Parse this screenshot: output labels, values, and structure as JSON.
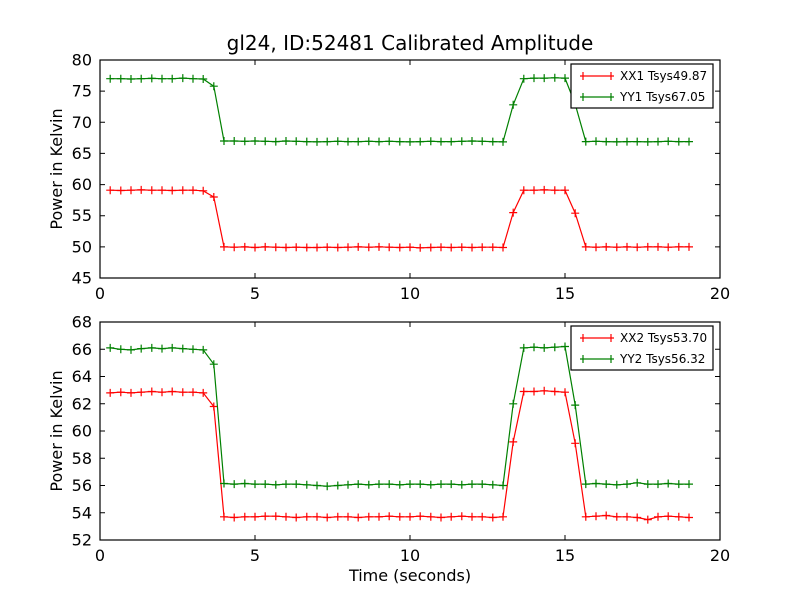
{
  "figure": {
    "title": "gl24, ID:52481 Calibrated Amplitude",
    "background_color": "#ffffff",
    "axes_color": "#000000",
    "series_colors": {
      "xx": "#ff0000",
      "yy": "#008000"
    }
  },
  "chart_data": [
    {
      "name": "subplot-1",
      "type": "line",
      "title": "",
      "xlabel": "",
      "ylabel": "Power in Kelvin",
      "xlim": [
        0,
        20
      ],
      "ylim": [
        45,
        80
      ],
      "xticks": [
        0,
        5,
        10,
        15,
        20
      ],
      "yticks": [
        45,
        50,
        55,
        60,
        65,
        70,
        75,
        80
      ],
      "grid": false,
      "legend_position": "upper right",
      "marker": "plus",
      "x": [
        0.33,
        0.67,
        1,
        1.33,
        1.67,
        2,
        2.33,
        2.67,
        3,
        3.33,
        3.67,
        4,
        4.33,
        4.67,
        5,
        5.33,
        5.67,
        6,
        6.33,
        6.67,
        7,
        7.33,
        7.67,
        8,
        8.33,
        8.67,
        9,
        9.33,
        9.67,
        10,
        10.33,
        10.67,
        11,
        11.33,
        11.67,
        12,
        12.33,
        12.67,
        13,
        13.33,
        13.67,
        14,
        14.33,
        14.67,
        15,
        15.33,
        15.67,
        16,
        16.33,
        16.67,
        17,
        17.33,
        17.67,
        18,
        18.33,
        18.67,
        19
      ],
      "series": [
        {
          "name": "XX1",
          "label": "XX1 Tsys49.87",
          "color": "#ff0000",
          "y": [
            59.1,
            59.05,
            59.1,
            59.15,
            59.1,
            59.1,
            59.05,
            59.1,
            59.1,
            59.0,
            58.0,
            50.0,
            49.95,
            50.0,
            49.9,
            50.0,
            49.95,
            49.9,
            49.95,
            49.9,
            49.9,
            49.95,
            49.9,
            49.95,
            50.0,
            49.95,
            50.0,
            49.95,
            49.9,
            49.95,
            49.85,
            49.9,
            49.95,
            49.9,
            49.95,
            49.9,
            49.95,
            49.95,
            49.9,
            55.5,
            59.1,
            59.1,
            59.15,
            59.1,
            59.1,
            55.4,
            50.0,
            49.95,
            50.0,
            49.95,
            50.0,
            49.95,
            50.0,
            50.0,
            49.95,
            50.0,
            50.0
          ]
        },
        {
          "name": "YY1",
          "label": "YY1 Tsys67.05",
          "color": "#008000",
          "y": [
            77.0,
            77.0,
            76.95,
            77.0,
            77.05,
            77.0,
            77.0,
            77.1,
            77.0,
            76.95,
            75.8,
            67.0,
            67.0,
            66.95,
            67.0,
            66.95,
            66.9,
            67.0,
            66.95,
            66.9,
            66.85,
            66.9,
            66.95,
            66.9,
            66.9,
            66.95,
            66.9,
            66.95,
            66.9,
            66.85,
            66.9,
            66.95,
            66.9,
            66.9,
            66.95,
            67.0,
            66.95,
            66.9,
            66.85,
            72.8,
            77.0,
            77.1,
            77.1,
            77.15,
            77.1,
            72.9,
            66.9,
            66.95,
            66.9,
            66.85,
            66.9,
            66.9,
            66.85,
            66.9,
            66.95,
            66.9,
            66.9
          ]
        }
      ]
    },
    {
      "name": "subplot-2",
      "type": "line",
      "title": "",
      "xlabel": "Time (seconds)",
      "ylabel": "Power in Kelvin",
      "xlim": [
        0,
        20
      ],
      "ylim": [
        52,
        68
      ],
      "xticks": [
        0,
        5,
        10,
        15,
        20
      ],
      "yticks": [
        52,
        54,
        56,
        58,
        60,
        62,
        64,
        66,
        68
      ],
      "grid": false,
      "legend_position": "upper right",
      "marker": "plus",
      "x": [
        0.33,
        0.67,
        1,
        1.33,
        1.67,
        2,
        2.33,
        2.67,
        3,
        3.33,
        3.67,
        4,
        4.33,
        4.67,
        5,
        5.33,
        5.67,
        6,
        6.33,
        6.67,
        7,
        7.33,
        7.67,
        8,
        8.33,
        8.67,
        9,
        9.33,
        9.67,
        10,
        10.33,
        10.67,
        11,
        11.33,
        11.67,
        12,
        12.33,
        12.67,
        13,
        13.33,
        13.67,
        14,
        14.33,
        14.67,
        15,
        15.33,
        15.67,
        16,
        16.33,
        16.67,
        17,
        17.33,
        17.67,
        18,
        18.33,
        18.67,
        19
      ],
      "series": [
        {
          "name": "XX2",
          "label": "XX2 Tsys53.70",
          "color": "#ff0000",
          "y": [
            62.8,
            62.85,
            62.8,
            62.85,
            62.9,
            62.85,
            62.9,
            62.85,
            62.85,
            62.8,
            61.8,
            53.7,
            53.65,
            53.7,
            53.7,
            53.75,
            53.75,
            53.7,
            53.65,
            53.7,
            53.7,
            53.65,
            53.7,
            53.7,
            53.65,
            53.7,
            53.7,
            53.75,
            53.7,
            53.7,
            53.75,
            53.7,
            53.65,
            53.7,
            53.75,
            53.7,
            53.7,
            53.65,
            53.7,
            59.2,
            62.9,
            62.9,
            62.95,
            62.9,
            62.85,
            59.1,
            53.7,
            53.75,
            53.8,
            53.7,
            53.7,
            53.65,
            53.5,
            53.7,
            53.75,
            53.7,
            53.65
          ]
        },
        {
          "name": "YY2",
          "label": "YY2 Tsys56.32",
          "color": "#008000",
          "y": [
            66.1,
            66.0,
            65.95,
            66.05,
            66.1,
            66.05,
            66.1,
            66.05,
            66.0,
            65.95,
            64.9,
            56.15,
            56.1,
            56.15,
            56.1,
            56.1,
            56.05,
            56.1,
            56.1,
            56.05,
            56.0,
            55.95,
            56.0,
            56.05,
            56.1,
            56.05,
            56.1,
            56.1,
            56.05,
            56.1,
            56.1,
            56.05,
            56.1,
            56.1,
            56.05,
            56.1,
            56.1,
            56.05,
            56.0,
            62.0,
            66.1,
            66.15,
            66.1,
            66.15,
            66.2,
            61.9,
            56.1,
            56.15,
            56.1,
            56.05,
            56.1,
            56.2,
            56.1,
            56.1,
            56.15,
            56.1,
            56.1
          ]
        }
      ]
    }
  ]
}
